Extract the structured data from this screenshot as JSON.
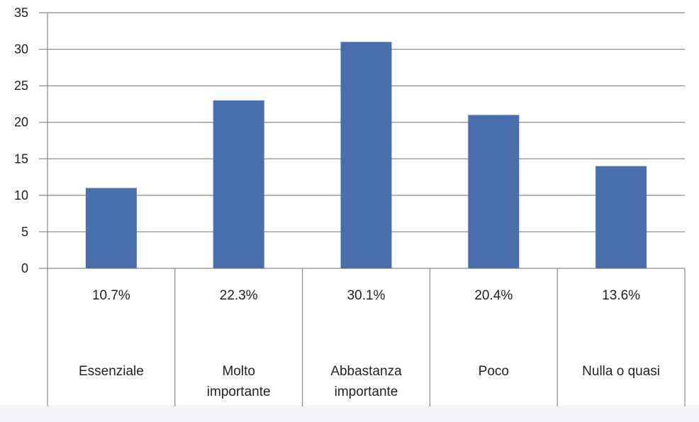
{
  "chart_data": {
    "type": "bar",
    "categories": [
      [
        "Essenziale"
      ],
      [
        "Molto",
        "importante"
      ],
      [
        "Abbastanza",
        "importante"
      ],
      [
        "Poco"
      ],
      [
        "Nulla o quasi"
      ]
    ],
    "values": [
      11,
      23,
      31,
      21,
      14
    ],
    "percent_labels": [
      "10.7%",
      "22.3%",
      "30.1%",
      "20.4%",
      "13.6%"
    ],
    "ylim": [
      0,
      35
    ],
    "yticks": [
      "0",
      "5",
      "10",
      "15",
      "20",
      "25",
      "30",
      "35"
    ],
    "grid": true,
    "bar_color": "#4a6fac"
  }
}
